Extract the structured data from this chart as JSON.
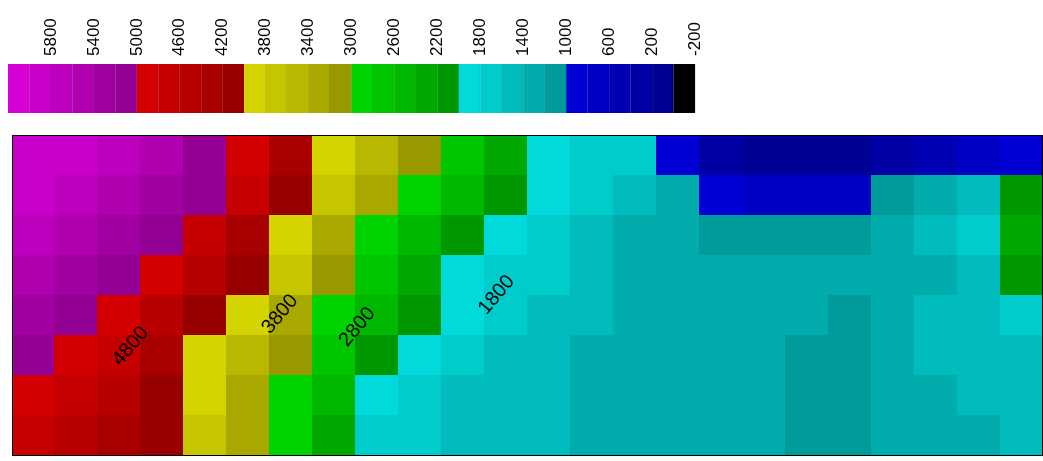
{
  "chart_data": {
    "type": "heatmap",
    "categories": [
      null,
      null,
      null,
      null,
      null,
      null,
      null,
      null,
      null,
      null,
      null,
      null,
      null,
      null,
      null,
      null,
      null,
      null,
      null,
      null,
      null,
      null,
      null,
      null
    ],
    "y_categories": [
      null,
      null,
      null,
      null,
      null,
      null,
      null,
      null
    ],
    "cells": [
      [
        6000,
        5900,
        5700,
        5500,
        5200,
        4900,
        4400,
        3900,
        3500,
        3100,
        2700,
        2300,
        2000,
        1800,
        1700,
        900,
        300,
        200,
        200,
        200,
        300,
        500,
        800,
        1000
      ],
      [
        5900,
        5700,
        5500,
        5300,
        5100,
        4700,
        4200,
        3700,
        3300,
        2900,
        2500,
        2200,
        1900,
        1700,
        1500,
        1300,
        900,
        700,
        700,
        800,
        1100,
        1300,
        1600,
        2200
      ],
      [
        5700,
        5500,
        5300,
        5100,
        4800,
        4400,
        3900,
        3400,
        3000,
        2600,
        2200,
        2000,
        1800,
        1600,
        1400,
        1300,
        1200,
        1200,
        1200,
        1200,
        1300,
        1500,
        1700,
        2400
      ],
      [
        5500,
        5300,
        5100,
        4900,
        4500,
        4100,
        3700,
        3200,
        2800,
        2400,
        2000,
        1800,
        1700,
        1600,
        1400,
        1300,
        1300,
        1300,
        1300,
        1300,
        1300,
        1400,
        1600,
        2200
      ],
      [
        5300,
        5100,
        4900,
        4600,
        4200,
        3900,
        3400,
        2900,
        2500,
        2100,
        1900,
        1700,
        1600,
        1500,
        1400,
        1300,
        1300,
        1300,
        1300,
        1200,
        1300,
        1500,
        1500,
        1700
      ],
      [
        5100,
        4900,
        4700,
        4400,
        4000,
        3600,
        3200,
        2700,
        2200,
        1900,
        1700,
        1600,
        1500,
        1400,
        1400,
        1300,
        1300,
        1300,
        1200,
        1200,
        1300,
        1500,
        1500,
        1500
      ],
      [
        5000,
        4700,
        4500,
        4200,
        3900,
        3400,
        3000,
        2500,
        1900,
        1700,
        1600,
        1500,
        1500,
        1400,
        1400,
        1300,
        1300,
        1300,
        1200,
        1200,
        1300,
        1400,
        1500,
        1500
      ],
      [
        4800,
        4600,
        4400,
        4100,
        3800,
        3300,
        2900,
        2300,
        1800,
        1700,
        1600,
        1500,
        1500,
        1400,
        1400,
        1300,
        1300,
        1300,
        1200,
        1200,
        1300,
        1400,
        1400,
        1500
      ]
    ],
    "clim": [
      6200,
      -200
    ],
    "cticks": [
      5800,
      5400,
      5000,
      4600,
      4200,
      3800,
      3400,
      3000,
      2600,
      2200,
      1800,
      1400,
      1000,
      600,
      200,
      -200
    ],
    "annotations": [
      "4800",
      "3800",
      "2800",
      "1800"
    ],
    "tick_labels": false
  }
}
